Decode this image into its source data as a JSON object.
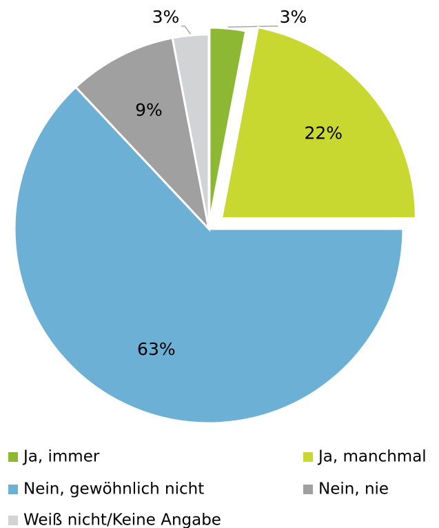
{
  "chart_data": {
    "type": "pie",
    "categories": [
      "Ja, immer",
      "Ja, manchmal",
      "Nein, gewöhnlich nicht",
      "Nein, nie",
      "Weiß nicht/Keine Angabe"
    ],
    "values": [
      3,
      22,
      63,
      9,
      3
    ],
    "value_labels": [
      "3%",
      "22%",
      "63%",
      "9%",
      "3%"
    ],
    "colors": [
      "#8db833",
      "#c9d830",
      "#6cb0d6",
      "#a0a0a0",
      "#d2d3d5"
    ],
    "legend": "bottom"
  }
}
